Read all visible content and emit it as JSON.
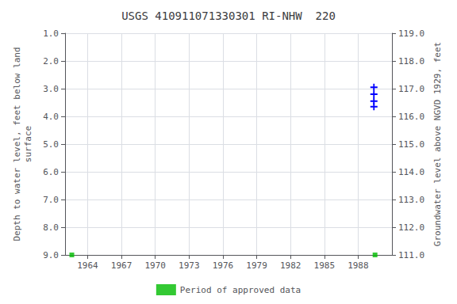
{
  "chart_data": {
    "type": "line",
    "title": "USGS 410911071330301 RI-NHW  220",
    "xlabel": null,
    "ylabel": "Depth to water level, feet below land\nsurface",
    "y2label": "Groundwater level above NGVD 1929, feet",
    "xlim": [
      1962.0,
      1991.0
    ],
    "xticks": [
      1964,
      1967,
      1970,
      1973,
      1976,
      1979,
      1982,
      1985,
      1988
    ],
    "ylim": [
      9.0,
      1.0
    ],
    "yticks": [
      {
        "value": 1.0,
        "label": "1.0"
      },
      {
        "value": 2.0,
        "label": "2.0"
      },
      {
        "value": 3.0,
        "label": "3.0"
      },
      {
        "value": 4.0,
        "label": "4.0"
      },
      {
        "value": 5.0,
        "label": "5.0"
      },
      {
        "value": 6.0,
        "label": "6.0"
      },
      {
        "value": 7.0,
        "label": "7.0"
      },
      {
        "value": 8.0,
        "label": "8.0"
      },
      {
        "value": 9.0,
        "label": "9.0"
      }
    ],
    "y2lim": [
      111.0,
      119.0
    ],
    "y2ticks": [
      {
        "value": 119.0,
        "label": "119.0"
      },
      {
        "value": 118.0,
        "label": "118.0"
      },
      {
        "value": 117.0,
        "label": "117.0"
      },
      {
        "value": 116.0,
        "label": "116.0"
      },
      {
        "value": 115.0,
        "label": "115.0"
      },
      {
        "value": 114.0,
        "label": "114.0"
      },
      {
        "value": 113.0,
        "label": "113.0"
      },
      {
        "value": 112.0,
        "label": "112.0"
      },
      {
        "value": 111.0,
        "label": "111.0"
      }
    ],
    "grid": true,
    "legend": "bottom",
    "series": [
      {
        "name": "Period of approved data",
        "type": "scatter",
        "marker": "square",
        "color": "#00bb00",
        "x": [
          1962.6,
          1989.5
        ],
        "values": [
          9.0,
          9.0
        ]
      },
      {
        "type": "line",
        "marker": "plus",
        "line_style": "dashed",
        "color": "#0000ff",
        "x": [
          1989.4,
          1989.4,
          1989.4,
          1989.4
        ],
        "values": [
          2.95,
          3.2,
          3.45,
          3.65
        ]
      }
    ]
  }
}
